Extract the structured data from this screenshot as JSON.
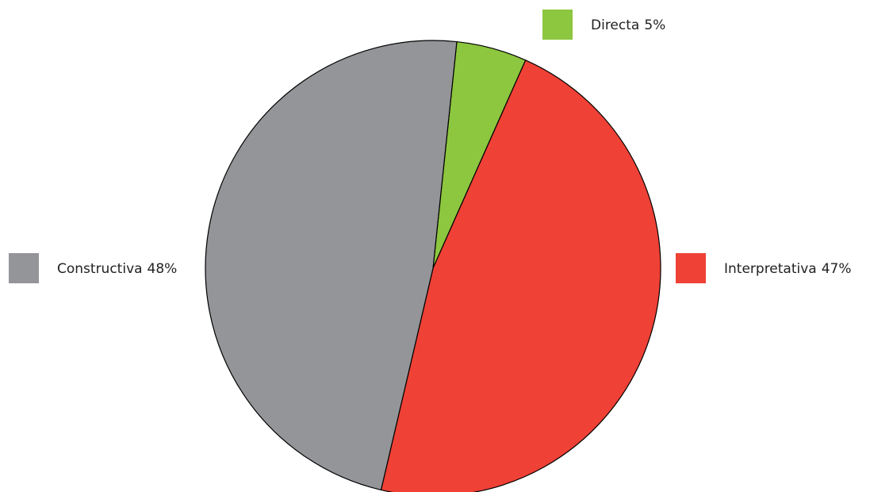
{
  "chart_data": {
    "type": "pie",
    "categories": [
      "Directa",
      "Interpretativa",
      "Constructiva"
    ],
    "values": [
      5,
      47,
      48
    ],
    "value_labels": [
      "5%",
      "47%",
      "48%"
    ],
    "colors": [
      "#8dc63f",
      "#ef4136",
      "#939598"
    ]
  }
}
